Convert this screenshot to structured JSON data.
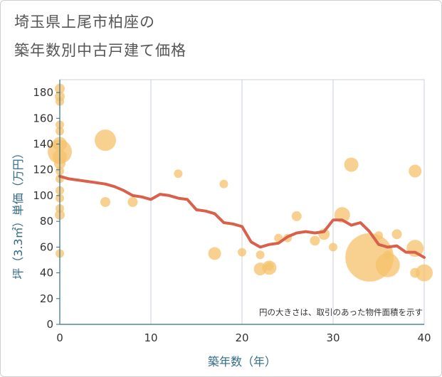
{
  "title_line1": "埼玉県上尾市柏座の",
  "title_line2": "築年数別中古戸建て価格",
  "chart_data": {
    "type": "scatter",
    "xlabel": "築年数（年）",
    "ylabel": "坪（3.3㎡）単価（万円）",
    "xlim": [
      0,
      40
    ],
    "ylim": [
      0,
      190
    ],
    "xticks": [
      "0",
      "10",
      "20",
      "30",
      "40"
    ],
    "yticks": [
      "0",
      "20",
      "40",
      "60",
      "80",
      "100",
      "120",
      "140",
      "160",
      "180"
    ],
    "annotation": "円の大きさは、取引のあった物件面積を示す",
    "grid": true,
    "colors": {
      "bubble": "#f5c16c",
      "line": "#d9604a",
      "grid": "#c8d0d8",
      "axis": "#336b87"
    },
    "scatter": [
      {
        "x": 0,
        "y": 183,
        "r": 7
      },
      {
        "x": 0,
        "y": 177,
        "r": 7
      },
      {
        "x": 0,
        "y": 173,
        "r": 6
      },
      {
        "x": 0,
        "y": 155,
        "r": 6
      },
      {
        "x": 0,
        "y": 150,
        "r": 6
      },
      {
        "x": 0,
        "y": 140,
        "r": 10
      },
      {
        "x": 0,
        "y": 134,
        "r": 17
      },
      {
        "x": 0,
        "y": 130,
        "r": 10
      },
      {
        "x": 0,
        "y": 125,
        "r": 8
      },
      {
        "x": 0,
        "y": 119,
        "r": 6
      },
      {
        "x": 0,
        "y": 113,
        "r": 6
      },
      {
        "x": 0,
        "y": 104,
        "r": 6
      },
      {
        "x": 0,
        "y": 98,
        "r": 6
      },
      {
        "x": 0,
        "y": 90,
        "r": 6
      },
      {
        "x": 0,
        "y": 85,
        "r": 7
      },
      {
        "x": 0,
        "y": 55,
        "r": 6
      },
      {
        "x": 5,
        "y": 143,
        "r": 15
      },
      {
        "x": 5,
        "y": 95,
        "r": 7
      },
      {
        "x": 8,
        "y": 95,
        "r": 7
      },
      {
        "x": 13,
        "y": 117,
        "r": 6
      },
      {
        "x": 17,
        "y": 55,
        "r": 9
      },
      {
        "x": 18,
        "y": 109,
        "r": 6
      },
      {
        "x": 20,
        "y": 56,
        "r": 6
      },
      {
        "x": 22,
        "y": 54,
        "r": 6
      },
      {
        "x": 22,
        "y": 43,
        "r": 9
      },
      {
        "x": 23,
        "y": 44,
        "r": 10
      },
      {
        "x": 23,
        "y": 45,
        "r": 6
      },
      {
        "x": 24,
        "y": 67,
        "r": 6
      },
      {
        "x": 25,
        "y": 67,
        "r": 6
      },
      {
        "x": 26,
        "y": 84,
        "r": 7
      },
      {
        "x": 28,
        "y": 65,
        "r": 7
      },
      {
        "x": 29,
        "y": 70,
        "r": 8
      },
      {
        "x": 30,
        "y": 60,
        "r": 6
      },
      {
        "x": 31,
        "y": 85,
        "r": 11
      },
      {
        "x": 32,
        "y": 124,
        "r": 10
      },
      {
        "x": 34,
        "y": 52,
        "r": 34
      },
      {
        "x": 35,
        "y": 69,
        "r": 6
      },
      {
        "x": 36,
        "y": 46,
        "r": 17
      },
      {
        "x": 36,
        "y": 54,
        "r": 6
      },
      {
        "x": 37,
        "y": 70,
        "r": 7
      },
      {
        "x": 39,
        "y": 119,
        "r": 9
      },
      {
        "x": 39,
        "y": 59,
        "r": 12
      },
      {
        "x": 39,
        "y": 40,
        "r": 7
      },
      {
        "x": 40,
        "y": 40,
        "r": 12
      }
    ],
    "line": {
      "x": [
        0,
        1,
        2,
        3,
        4,
        5,
        6,
        7,
        8,
        9,
        10,
        11,
        12,
        13,
        14,
        15,
        16,
        17,
        18,
        19,
        20,
        21,
        22,
        23,
        24,
        25,
        26,
        27,
        28,
        29,
        30,
        31,
        32,
        33,
        34,
        35,
        36,
        37,
        38,
        39,
        40
      ],
      "y": [
        115,
        113,
        112,
        111,
        110,
        109,
        107,
        104,
        100,
        99,
        97,
        101,
        100,
        98,
        97,
        89,
        88,
        86,
        79,
        78,
        76,
        64,
        60,
        62,
        63,
        68,
        71,
        72,
        71,
        72,
        81,
        81,
        77,
        79,
        72,
        62,
        60,
        61,
        56,
        56,
        52
      ]
    }
  }
}
